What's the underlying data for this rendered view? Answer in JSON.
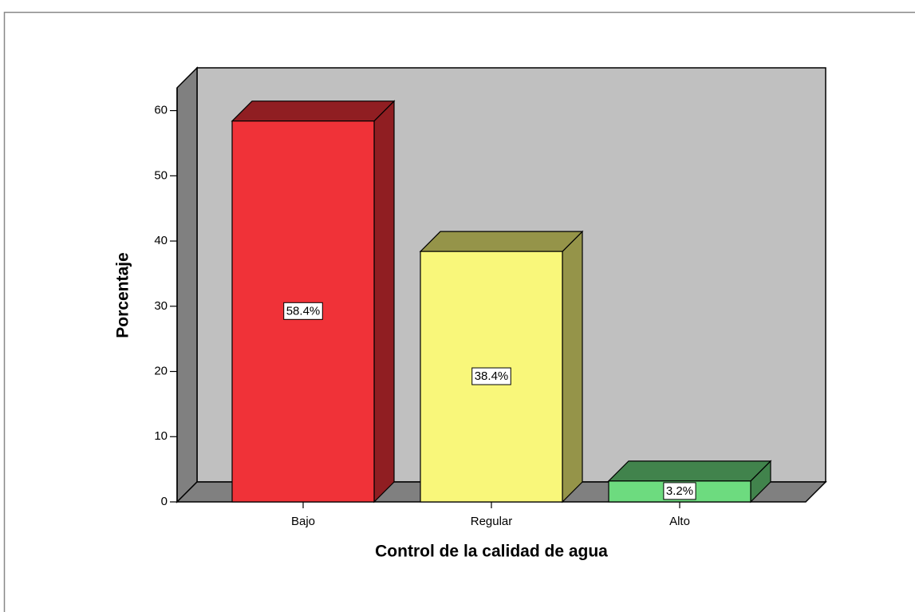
{
  "chart_data": {
    "type": "bar3d",
    "x_label": "Control de la calidad de agua",
    "y_label": "Porcentaje",
    "categories": [
      "Bajo",
      "Regular",
      "Alto"
    ],
    "values": [
      58.4,
      38.4,
      3.2
    ],
    "value_labels": [
      "58.4%",
      "38.4%",
      "3.2%"
    ],
    "colors": [
      "#f03238",
      "#f9f77a",
      "#6ddb7f"
    ],
    "ylim": [
      0,
      63.5
    ],
    "yticks": [
      0,
      10,
      20,
      30,
      40,
      50,
      60
    ]
  }
}
